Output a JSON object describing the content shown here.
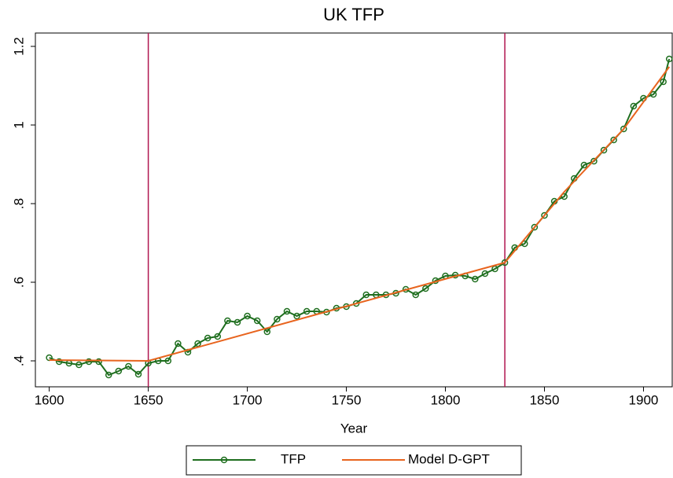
{
  "chart_data": {
    "type": "line",
    "title": "UK TFP",
    "x_label": "Year",
    "xlim": [
      1593,
      1914.5
    ],
    "ylim": [
      0.334,
      1.234
    ],
    "xticks": [
      1600,
      1650,
      1700,
      1750,
      1800,
      1850,
      1900
    ],
    "yticks": [
      {
        "value": 0.4,
        "label": ".4"
      },
      {
        "value": 0.6,
        "label": ".6"
      },
      {
        "value": 0.8,
        "label": ".8"
      },
      1,
      1.2
    ],
    "vlines": [
      1650,
      1830
    ],
    "vline_color": "#b0154f",
    "legend": "bottom",
    "series": [
      {
        "name": "TFP",
        "color": "#1e6e1e",
        "marker": "circle",
        "x": [
          1600,
          1605,
          1610,
          1615,
          1620,
          1625,
          1630,
          1635,
          1640,
          1645,
          1650,
          1655,
          1660,
          1665,
          1670,
          1675,
          1680,
          1685,
          1690,
          1695,
          1700,
          1705,
          1710,
          1715,
          1720,
          1725,
          1730,
          1735,
          1740,
          1745,
          1750,
          1755,
          1760,
          1765,
          1770,
          1775,
          1780,
          1785,
          1790,
          1795,
          1800,
          1805,
          1810,
          1815,
          1820,
          1825,
          1830,
          1835,
          1840,
          1845,
          1850,
          1855,
          1860,
          1865,
          1870,
          1875,
          1880,
          1885,
          1890,
          1895,
          1900,
          1905,
          1910,
          1913
        ],
        "values": [
          0.408,
          0.398,
          0.394,
          0.39,
          0.398,
          0.398,
          0.364,
          0.374,
          0.386,
          0.366,
          0.394,
          0.4,
          0.4,
          0.444,
          0.422,
          0.444,
          0.458,
          0.462,
          0.502,
          0.498,
          0.514,
          0.502,
          0.474,
          0.506,
          0.526,
          0.514,
          0.526,
          0.526,
          0.524,
          0.534,
          0.538,
          0.546,
          0.568,
          0.568,
          0.568,
          0.572,
          0.582,
          0.568,
          0.584,
          0.604,
          0.616,
          0.618,
          0.616,
          0.608,
          0.622,
          0.634,
          0.65,
          0.688,
          0.698,
          0.74,
          0.77,
          0.806,
          0.818,
          0.864,
          0.898,
          0.908,
          0.936,
          0.962,
          0.99,
          1.048,
          1.068,
          1.078,
          1.11,
          1.168
        ]
      },
      {
        "name": "Model D-GPT",
        "color": "#e8641e",
        "x": [
          1600,
          1650,
          1830,
          1860,
          1890,
          1913
        ],
        "values": [
          0.402,
          0.4,
          0.65,
          0.83,
          0.99,
          1.148
        ]
      }
    ]
  }
}
